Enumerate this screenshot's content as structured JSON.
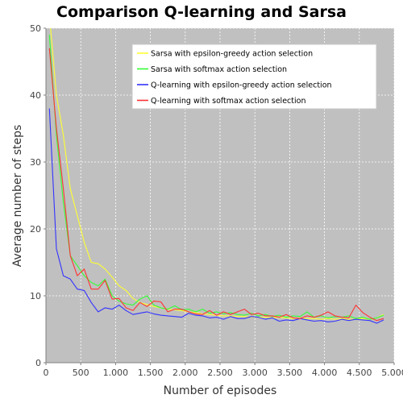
{
  "chart_data": {
    "type": "line",
    "title": "Comparison Q-learning and Sarsa",
    "xlabel": "Number of episodes",
    "ylabel": "Average number of steps",
    "xlim": [
      0,
      5000
    ],
    "ylim": [
      0,
      50
    ],
    "x_ticks": [
      0,
      500,
      1000,
      1500,
      2000,
      2500,
      3000,
      3500,
      4000,
      4500,
      5000
    ],
    "x_tick_labels": [
      "0",
      "500",
      "1.000",
      "1.500",
      "2.000",
      "2.500",
      "3.000",
      "3.500",
      "4.000",
      "4.500",
      "5.000"
    ],
    "y_ticks": [
      0,
      10,
      20,
      30,
      40,
      50
    ],
    "y_tick_labels": [
      "0",
      "10",
      "20",
      "30",
      "40",
      "50"
    ],
    "grid": true,
    "background": "#c0c0c0",
    "legend_position": "top-right",
    "series": [
      {
        "name": "Sarsa with epsilon-greedy action selection",
        "color": "#ffff33",
        "x": [
          50,
          150,
          250,
          350,
          450,
          550,
          650,
          750,
          850,
          950,
          1050,
          1150,
          1250,
          1350,
          1450,
          1550,
          1650,
          1750,
          1850,
          1950,
          2050,
          2150,
          2250,
          2350,
          2450,
          2550,
          2650,
          2750,
          2850,
          2950,
          3050,
          3150,
          3250,
          3350,
          3450,
          3550,
          3650,
          3750,
          3850,
          3950,
          4050,
          4150,
          4250,
          4350,
          4450,
          4550,
          4650,
          4750,
          4850
        ],
        "y": [
          52,
          40,
          34,
          26,
          22,
          18,
          15,
          14.8,
          14,
          12.8,
          11.5,
          10.8,
          9.6,
          9,
          8.7,
          8.4,
          8.2,
          8,
          7.9,
          7.8,
          7.6,
          7.5,
          7.3,
          7.2,
          7.1,
          7,
          7,
          6.9,
          6.9,
          6.8,
          6.8,
          6.8,
          6.7,
          6.8,
          6.7,
          6.6,
          6.7,
          6.6,
          6.6,
          6.5,
          6.6,
          6.5,
          6.6,
          6.5,
          6.5,
          6.6,
          6.5,
          6.7,
          7.2
        ]
      },
      {
        "name": "Sarsa with softmax action selection",
        "color": "#33ff33",
        "x": [
          50,
          150,
          250,
          350,
          450,
          550,
          650,
          750,
          850,
          950,
          1050,
          1150,
          1250,
          1350,
          1450,
          1550,
          1650,
          1750,
          1850,
          1950,
          2050,
          2150,
          2250,
          2350,
          2450,
          2550,
          2650,
          2750,
          2850,
          2950,
          3050,
          3150,
          3250,
          3350,
          3450,
          3550,
          3650,
          3750,
          3850,
          3950,
          4050,
          4150,
          4250,
          4350,
          4450,
          4550,
          4650,
          4750,
          4850
        ],
        "y": [
          49,
          34,
          24,
          16,
          14.5,
          13,
          12,
          11.5,
          12.5,
          10,
          9.2,
          8.8,
          8.6,
          9.5,
          10,
          8.6,
          8.2,
          8,
          8.5,
          7.9,
          8,
          7.6,
          8,
          7.4,
          7.6,
          7.3,
          7.5,
          7.2,
          7.1,
          7.4,
          7,
          7.2,
          6.9,
          7.1,
          6.8,
          7,
          6.9,
          7.6,
          6.8,
          7,
          6.7,
          6.9,
          6.8,
          7,
          6.6,
          6.8,
          6.5,
          6.7,
          7.1
        ]
      },
      {
        "name": "Q-learning with epsilon-greedy action selection",
        "color": "#3333ff",
        "x": [
          50,
          150,
          250,
          350,
          450,
          550,
          650,
          750,
          850,
          950,
          1050,
          1150,
          1250,
          1350,
          1450,
          1550,
          1650,
          1750,
          1850,
          1950,
          2050,
          2150,
          2250,
          2350,
          2450,
          2550,
          2650,
          2750,
          2850,
          2950,
          3050,
          3150,
          3250,
          3350,
          3450,
          3550,
          3650,
          3750,
          3850,
          3950,
          4050,
          4150,
          4250,
          4350,
          4450,
          4550,
          4650,
          4750,
          4850
        ],
        "y": [
          38,
          17,
          13,
          12.5,
          11,
          10.8,
          9,
          7.6,
          8.2,
          8,
          8.6,
          7.8,
          7.2,
          7.4,
          7.6,
          7.3,
          7.1,
          7,
          6.9,
          6.8,
          7.4,
          7.1,
          7,
          6.7,
          6.8,
          6.5,
          6.9,
          6.6,
          6.6,
          6.9,
          6.8,
          6.5,
          6.7,
          6.2,
          6.4,
          6.3,
          6.6,
          6.4,
          6.2,
          6.3,
          6.1,
          6.2,
          6.5,
          6.3,
          6.5,
          6.4,
          6.3,
          5.9,
          6.4
        ]
      },
      {
        "name": "Q-learning with softmax action selection",
        "color": "#ff3333",
        "x": [
          50,
          150,
          250,
          350,
          450,
          550,
          650,
          750,
          850,
          950,
          1050,
          1150,
          1250,
          1350,
          1450,
          1550,
          1650,
          1750,
          1850,
          1950,
          2050,
          2150,
          2250,
          2350,
          2450,
          2550,
          2650,
          2750,
          2850,
          2950,
          3050,
          3150,
          3250,
          3350,
          3450,
          3550,
          3650,
          3750,
          3850,
          3950,
          4050,
          4150,
          4250,
          4350,
          4450,
          4550,
          4650,
          4750,
          4850
        ],
        "y": [
          47,
          35,
          26,
          16,
          13,
          14,
          11,
          11,
          12.3,
          9.5,
          9.6,
          8.2,
          7.8,
          9,
          8.4,
          9.2,
          9.1,
          7.6,
          8,
          8,
          7.6,
          7.3,
          7.2,
          7.8,
          7.1,
          7.6,
          7.2,
          7.6,
          8,
          7.2,
          7.4,
          7,
          7,
          6.8,
          7.2,
          6.7,
          6.6,
          7,
          6.8,
          7.1,
          7.6,
          7,
          6.8,
          6.7,
          8.6,
          7.5,
          6.8,
          6.3,
          6.6
        ]
      }
    ]
  }
}
